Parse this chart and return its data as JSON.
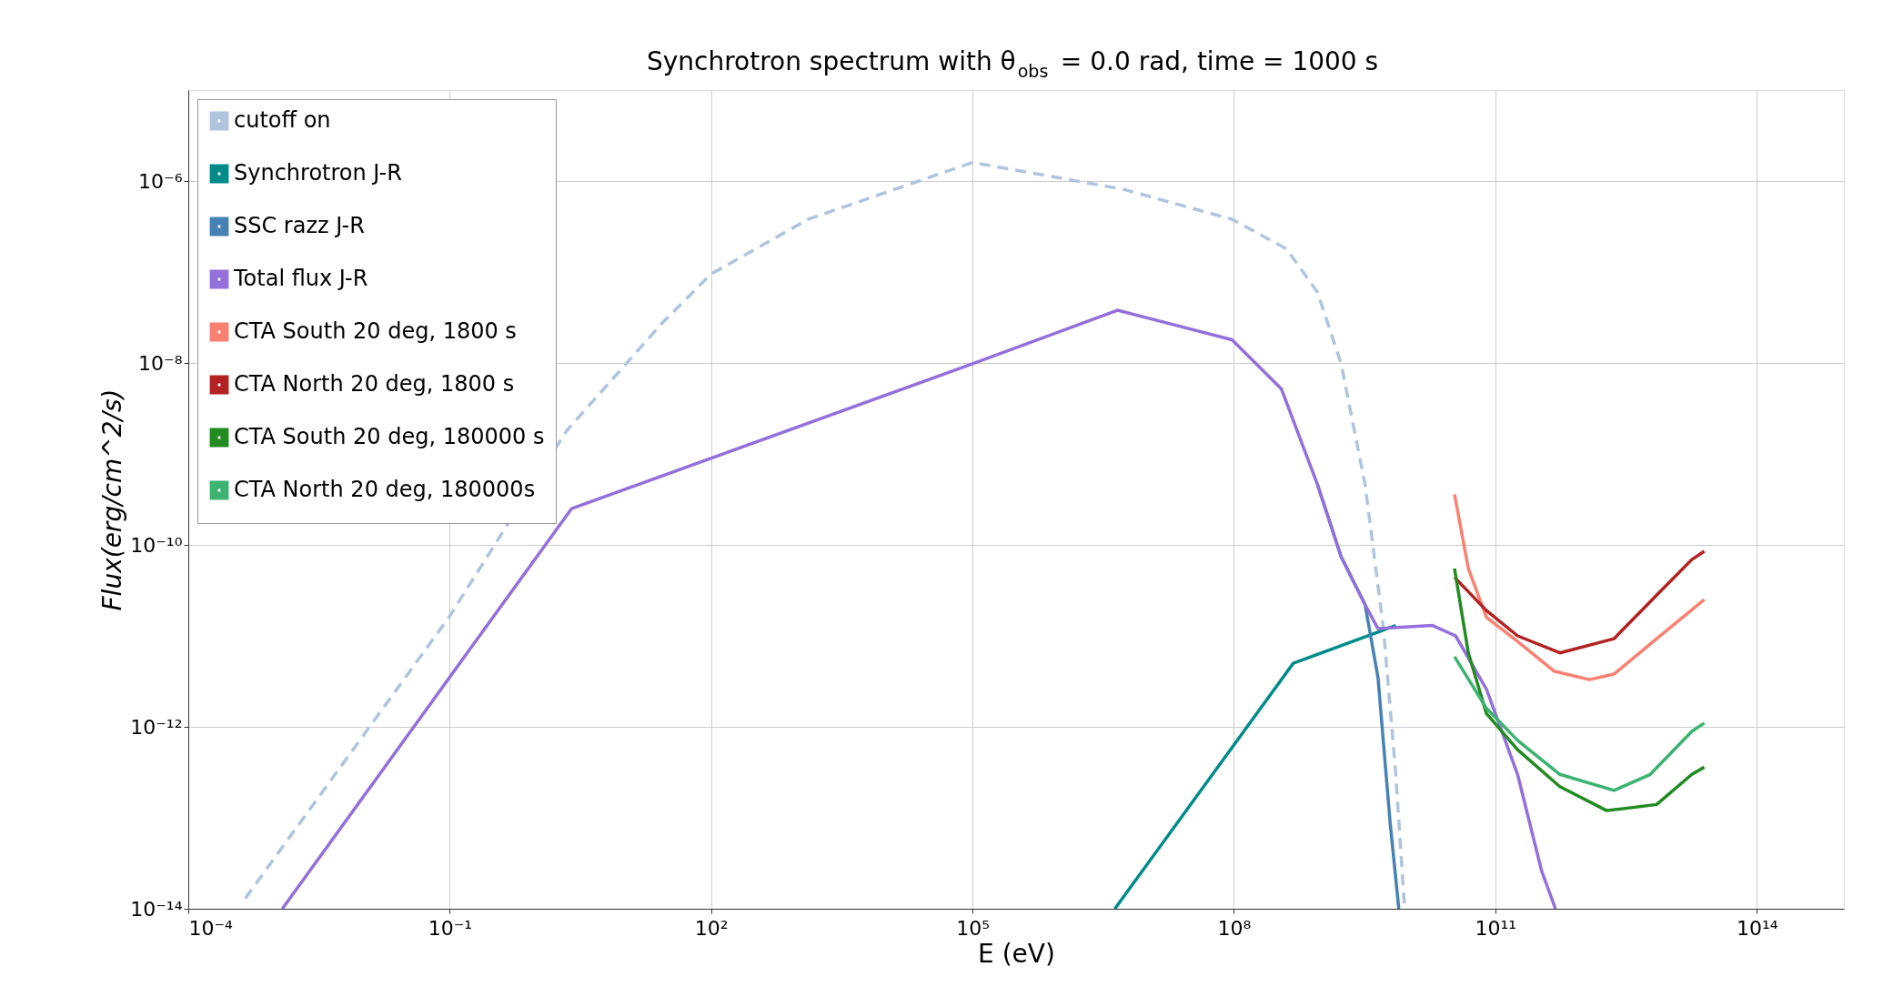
{
  "chart_data": {
    "type": "line",
    "title": "Synchrotron spectrum with θ$_{obs}$ = 0.0 rad, time = 1000 s",
    "xlabel": "E (eV)",
    "ylabel": "Flux(erg/cm^2/s)",
    "log": "xy",
    "grid": true,
    "legend": "top left",
    "xlim": [
      0.0001,
      1000000000000000.0
    ],
    "ylim": [
      1e-14,
      1e-05
    ],
    "xticks": [
      {
        "value": 0.0001,
        "label": "10⁻⁴"
      },
      {
        "value": 0.1,
        "label": "10⁻¹"
      },
      {
        "value": 100.0,
        "label": "10²"
      },
      {
        "value": 100000.0,
        "label": "10⁵"
      },
      {
        "value": 100000000.0,
        "label": "10⁸"
      },
      {
        "value": 100000000000.0,
        "label": "10¹¹"
      },
      {
        "value": 100000000000000.0,
        "label": "10¹⁴"
      }
    ],
    "yticks": [
      {
        "value": 1e-14,
        "label": "10⁻¹⁴"
      },
      {
        "value": 1e-12,
        "label": "10⁻¹²"
      },
      {
        "value": 1e-10,
        "label": "10⁻¹⁰"
      },
      {
        "value": 1e-08,
        "label": "10⁻⁸"
      },
      {
        "value": 1e-06,
        "label": "10⁻⁶"
      }
    ],
    "series": [
      {
        "name": "cutoff on",
        "color": "#b0c4de",
        "line_style": "dashed",
        "x": [
          0.00045,
          0.098,
          2.2,
          28,
          100,
          1300,
          100000.0,
          5400000.0,
          95000000.0,
          400000000.0,
          910000000.0,
          1700000000.0,
          3200000000.0,
          5200000000.0,
          7200000000.0,
          9100000000.0
        ],
        "values": [
          1.3e-14,
          1.6e-11,
          1.8e-09,
          2.8e-08,
          9.5e-08,
          3.8e-07,
          1.6e-06,
          8.1e-07,
          3.8e-07,
          1.8e-07,
          6e-08,
          9.8e-09,
          4.6e-10,
          1.2e-11,
          3e-13,
          1e-14
        ]
      },
      {
        "name": "Synchrotron J-R",
        "color": "#008b8b",
        "line_style": "solid",
        "x": [
          4300000.0,
          480000000.0,
          4500000000.0,
          7200000000.0
        ],
        "values": [
          1e-14,
          5e-12,
          1.1e-11,
          1.3e-11
        ]
      },
      {
        "name": "SSC razz J-R",
        "color": "#4682b4",
        "line_style": "solid",
        "x": [
          910000000.0,
          1700000000.0,
          3200000000.0,
          4500000000.0,
          6200000000.0,
          7800000000.0
        ],
        "values": [
          4.6e-10,
          7.4e-11,
          2.2e-11,
          3.5e-12,
          8.9e-14,
          1e-14
        ]
      },
      {
        "name": "Total flux J-R",
        "color": "#9370db",
        "line_style": "solid",
        "x": [
          0.0012,
          2.5,
          100000.0,
          4600000.0,
          95000000.0,
          350000000.0,
          910000000.0,
          1700000000.0,
          3200000000.0,
          4500000000.0,
          19000000000.0,
          35000000000.0,
          79000000000.0,
          180000000000.0,
          340000000000.0,
          490000000000.0
        ],
        "values": [
          1e-14,
          2.5e-10,
          9.8e-09,
          3.8e-08,
          1.8e-08,
          5.2e-09,
          4.6e-10,
          7.4e-11,
          2.2e-11,
          1.2e-11,
          1.3e-11,
          1e-11,
          2.6e-12,
          3e-13,
          2.6e-14,
          1e-14
        ]
      },
      {
        "name": "CTA South 20 deg, 1800 s",
        "color": "#fa8072",
        "line_style": "solid",
        "x": [
          34000000000.0,
          49000000000.0,
          79000000000.0,
          180000000000.0,
          470000000000.0,
          1200000000000.0,
          2300000000000.0,
          7100000000000.0,
          25000000000000.0
        ],
        "values": [
          3.6e-10,
          5.5e-11,
          1.6e-11,
          8.7e-12,
          4.1e-12,
          3.3e-12,
          3.8e-12,
          9.3e-12,
          2.5e-11
        ]
      },
      {
        "name": "CTA North 20 deg, 1800 s",
        "color": "#b22222",
        "line_style": "solid",
        "x": [
          34000000000.0,
          79000000000.0,
          180000000000.0,
          550000000000.0,
          2300000000000.0,
          7100000000000.0,
          18000000000000.0,
          25000000000000.0
        ],
        "values": [
          4.4e-11,
          1.9e-11,
          1e-11,
          6.5e-12,
          9.3e-12,
          2.8e-11,
          6.9e-11,
          8.5e-11
        ]
      },
      {
        "name": "CTA South 20 deg, 180000 s",
        "color": "#228b22",
        "line_style": "solid",
        "x": [
          34000000000.0,
          49000000000.0,
          79000000000.0,
          180000000000.0,
          550000000000.0,
          1900000000000.0,
          7100000000000.0,
          18000000000000.0,
          25000000000000.0
        ],
        "values": [
          5.5e-11,
          6.5e-12,
          1.4e-12,
          5.6e-13,
          2.2e-13,
          1.2e-13,
          1.4e-13,
          3e-13,
          3.6e-13
        ]
      },
      {
        "name": "CTA North 20 deg, 180000s",
        "color": "#3cb371",
        "line_style": "solid",
        "x": [
          34000000000.0,
          79000000000.0,
          180000000000.0,
          550000000000.0,
          2300000000000.0,
          6000000000000.0,
          18000000000000.0,
          25000000000000.0
        ],
        "values": [
          5.9e-12,
          1.6e-12,
          7.1e-13,
          3e-13,
          2e-13,
          3e-13,
          8.9e-13,
          1.1e-12
        ]
      }
    ]
  }
}
